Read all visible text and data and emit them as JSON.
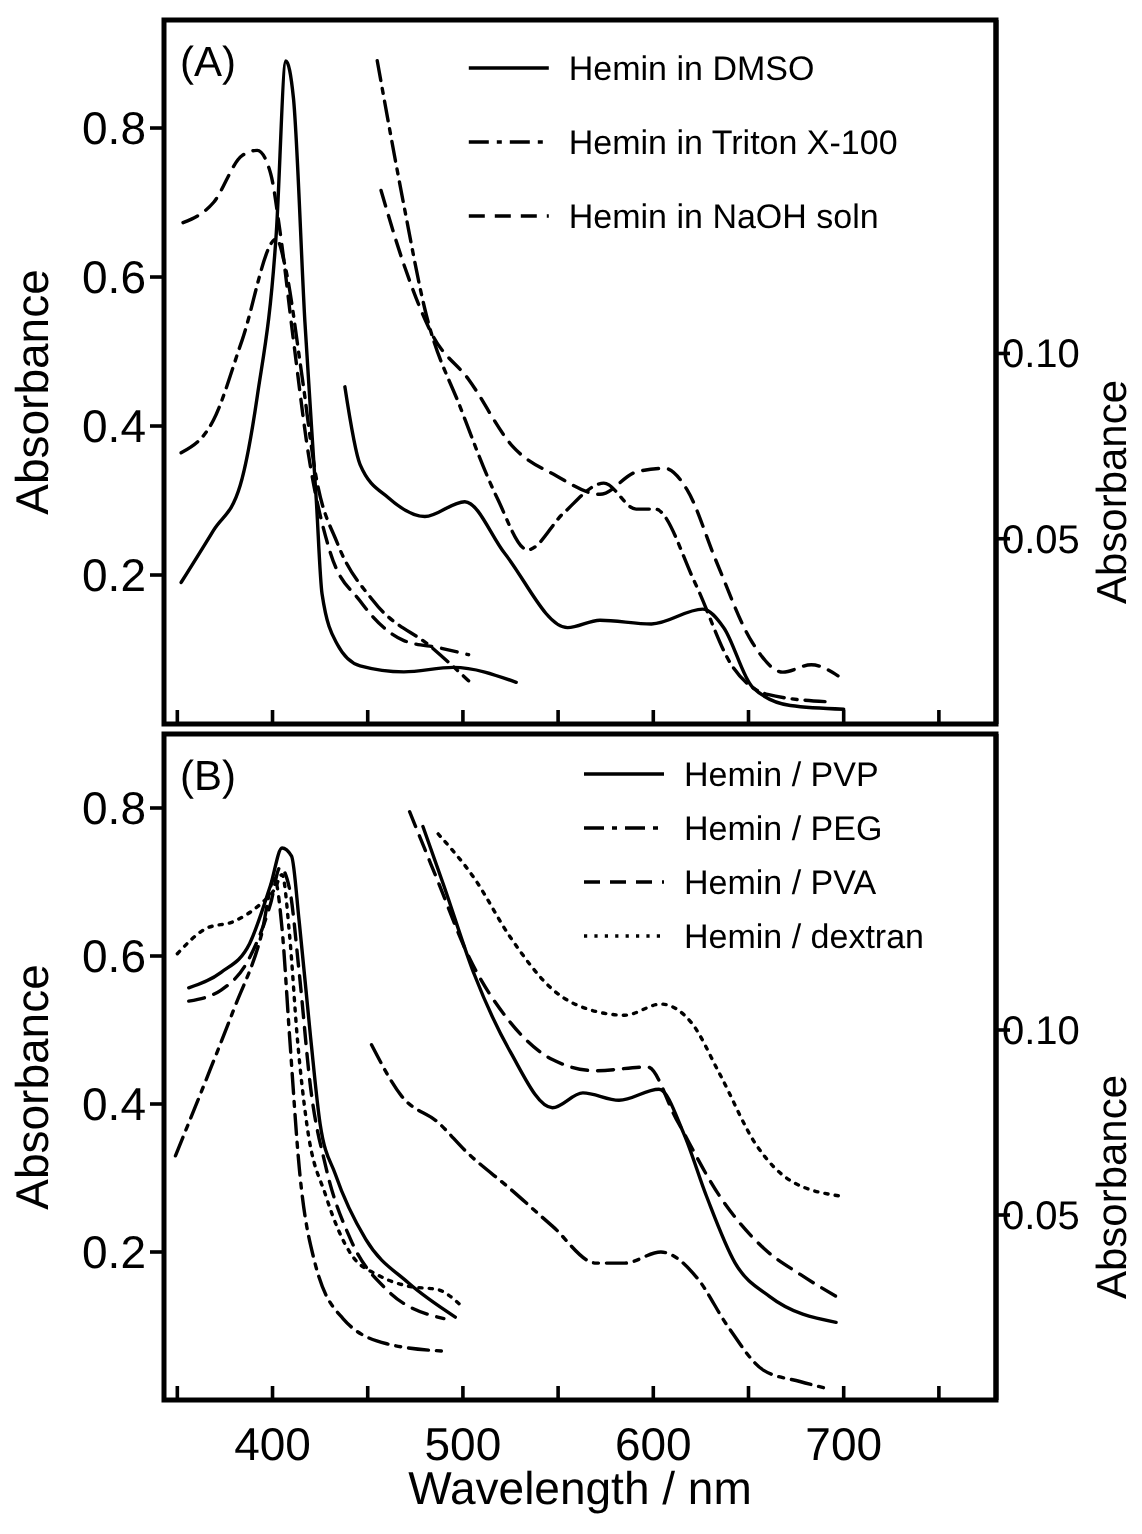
{
  "chart_data": [
    {
      "type": "line",
      "annotations": [
        "(A)"
      ],
      "ylabel": "Absorbance",
      "y2label": "Absorbance",
      "legend": "top right",
      "tick_labels": "y",
      "xlim": [
        343,
        780
      ],
      "xticks": [
        {
          "value": 350,
          "label": null
        },
        400,
        {
          "value": 450,
          "label": null
        },
        500,
        {
          "value": 550,
          "label": null
        },
        600,
        {
          "value": 650,
          "label": null
        },
        700,
        {
          "value": 750,
          "label": null
        }
      ],
      "ylim": [
        0,
        0.945
      ],
      "yticks": [
        0.2,
        0.4,
        0.6,
        0.8
      ],
      "y2lim": [
        0,
        0.19
      ],
      "y2ticks": [
        0.05,
        {
          "value": 0.1,
          "label": "0.10"
        }
      ],
      "series": [
        {
          "name": "Hemin in DMSO",
          "color": "#000000",
          "line_style": "solid",
          "x": [
            352,
            369,
            383,
            392,
            402,
            407,
            411,
            417,
            423,
            426,
            434,
            446,
            469,
            495,
            528
          ],
          "values": [
            0.19,
            0.26,
            0.32,
            0.44,
            0.66,
            0.89,
            0.84,
            0.54,
            0.3,
            0.175,
            0.107,
            0.078,
            0.07,
            0.076,
            0.056
          ]
        },
        {
          "color": "#000000",
          "line_style": "solid",
          "axis": "y2",
          "x": [
            438,
            446,
            461,
            480,
            501,
            522,
            555,
            572,
            599,
            626,
            637,
            652,
            672,
            700
          ],
          "values": [
            0.091,
            0.07,
            0.061,
            0.056,
            0.06,
            0.046,
            0.026,
            0.028,
            0.027,
            0.031,
            0.026,
            0.01,
            0.005,
            0.004
          ]
        },
        {
          "name": "Hemin in Triton X-100",
          "color": "#000000",
          "line_style": "dashdot",
          "x": [
            352,
            369,
            384,
            402,
            407,
            415,
            423,
            434,
            453,
            484,
            503
          ],
          "values": [
            0.364,
            0.408,
            0.515,
            0.651,
            0.61,
            0.476,
            0.33,
            0.243,
            0.165,
            0.102,
            0.058
          ]
        },
        {
          "color": "#000000",
          "line_style": "dashdot",
          "axis": "y2",
          "x": [
            455,
            469,
            480,
            499,
            518,
            534,
            553,
            574,
            591,
            601,
            622,
            641,
            660,
            691
          ],
          "values": [
            0.179,
            0.14,
            0.112,
            0.085,
            0.061,
            0.047,
            0.057,
            0.065,
            0.058,
            0.058,
            0.038,
            0.016,
            0.008,
            0.006
          ]
        },
        {
          "name": "Hemin in NaOH soln",
          "color": "#000000",
          "line_style": "dashed",
          "x": [
            353,
            369,
            384,
            392,
            399,
            404,
            411,
            419,
            430,
            446,
            469,
            488,
            503
          ],
          "values": [
            0.673,
            0.7,
            0.763,
            0.77,
            0.739,
            0.66,
            0.515,
            0.36,
            0.233,
            0.165,
            0.112,
            0.102,
            0.093
          ]
        },
        {
          "color": "#000000",
          "line_style": "dashed",
          "axis": "y2",
          "x": [
            457,
            469,
            484,
            503,
            526,
            549,
            572,
            591,
            606,
            618,
            633,
            652,
            668,
            683,
            697
          ],
          "values": [
            0.144,
            0.124,
            0.105,
            0.093,
            0.075,
            0.067,
            0.062,
            0.068,
            0.069,
            0.063,
            0.044,
            0.022,
            0.014,
            0.016,
            0.013
          ]
        }
      ]
    },
    {
      "type": "line",
      "annotations": [
        "(B)"
      ],
      "xlabel": "Wavelength / nm",
      "ylabel": "Absorbance",
      "y2label": "Absorbance",
      "legend": "top right",
      "xlim": [
        343,
        780
      ],
      "xticks": [
        {
          "value": 350,
          "label": null
        },
        400,
        {
          "value": 450,
          "label": null
        },
        500,
        {
          "value": 550,
          "label": null
        },
        600,
        {
          "value": 650,
          "label": null
        },
        700,
        {
          "value": 750,
          "label": null
        }
      ],
      "ylim": [
        0,
        0.9
      ],
      "yticks": [
        0.2,
        0.4,
        0.6,
        0.8
      ],
      "y2lim": [
        0,
        0.18
      ],
      "y2ticks": [
        0.05,
        {
          "value": 0.1,
          "label": "0.10"
        }
      ],
      "series": [
        {
          "name": "Hemin / PVP",
          "color": "#000000",
          "line_style": "solid",
          "x": [
            356,
            373,
            388,
            399,
            405,
            410,
            414,
            420,
            425,
            433,
            449,
            471,
            496
          ],
          "values": [
            0.557,
            0.578,
            0.617,
            0.696,
            0.746,
            0.735,
            0.647,
            0.49,
            0.373,
            0.305,
            0.217,
            0.159,
            0.112
          ]
        },
        {
          "color": "#000000",
          "line_style": "solid",
          "axis": "y2",
          "x": [
            479,
            490,
            506,
            525,
            547,
            563,
            582,
            603,
            616,
            628,
            643,
            661,
            696
          ],
          "values": [
            0.155,
            0.139,
            0.115,
            0.094,
            0.079,
            0.083,
            0.081,
            0.084,
            0.072,
            0.055,
            0.037,
            0.028,
            0.021
          ]
        },
        {
          "name": "Hemin / PEG",
          "color": "#000000",
          "line_style": "dashdot",
          "x": [
            349,
            365,
            380,
            394,
            401,
            405,
            409,
            414,
            422,
            437,
            460,
            490
          ],
          "values": [
            0.33,
            0.432,
            0.53,
            0.627,
            0.705,
            0.637,
            0.49,
            0.315,
            0.188,
            0.11,
            0.076,
            0.066
          ]
        },
        {
          "color": "#000000",
          "line_style": "dashdot",
          "axis": "y2",
          "x": [
            452,
            468,
            487,
            502,
            525,
            547,
            570,
            585,
            604,
            623,
            639,
            658,
            677,
            692
          ],
          "values": [
            0.096,
            0.082,
            0.075,
            0.067,
            0.057,
            0.047,
            0.037,
            0.037,
            0.04,
            0.033,
            0.02,
            0.008,
            0.005,
            0.003
          ]
        },
        {
          "name": "Hemin / PVA",
          "color": "#000000",
          "line_style": "dashed",
          "x": [
            356,
            373,
            388,
            399,
            404,
            409,
            414,
            420,
            428,
            441,
            460,
            490
          ],
          "values": [
            0.539,
            0.554,
            0.598,
            0.671,
            0.72,
            0.69,
            0.578,
            0.422,
            0.315,
            0.217,
            0.149,
            0.11
          ]
        },
        {
          "color": "#000000",
          "line_style": "dashed",
          "axis": "y2",
          "x": [
            472,
            487,
            502,
            525,
            547,
            570,
            597,
            612,
            635,
            658,
            677,
            696
          ],
          "values": [
            0.159,
            0.14,
            0.121,
            0.102,
            0.092,
            0.089,
            0.09,
            0.076,
            0.055,
            0.041,
            0.034,
            0.028
          ]
        },
        {
          "name": "Hemin / dextran",
          "color": "#000000",
          "line_style": "dotted",
          "x": [
            350,
            365,
            380,
            394,
            401,
            405,
            409,
            413,
            418,
            428,
            441,
            456,
            471,
            487,
            498
          ],
          "values": [
            0.603,
            0.637,
            0.647,
            0.671,
            0.69,
            0.71,
            0.627,
            0.49,
            0.373,
            0.276,
            0.198,
            0.168,
            0.154,
            0.149,
            0.13
          ]
        },
        {
          "color": "#000000",
          "line_style": "dotted",
          "axis": "y2",
          "x": [
            487,
            506,
            525,
            547,
            570,
            585,
            604,
            620,
            635,
            654,
            673,
            700
          ],
          "values": [
            0.153,
            0.141,
            0.125,
            0.111,
            0.105,
            0.104,
            0.107,
            0.102,
            0.088,
            0.069,
            0.059,
            0.055
          ]
        }
      ]
    }
  ]
}
